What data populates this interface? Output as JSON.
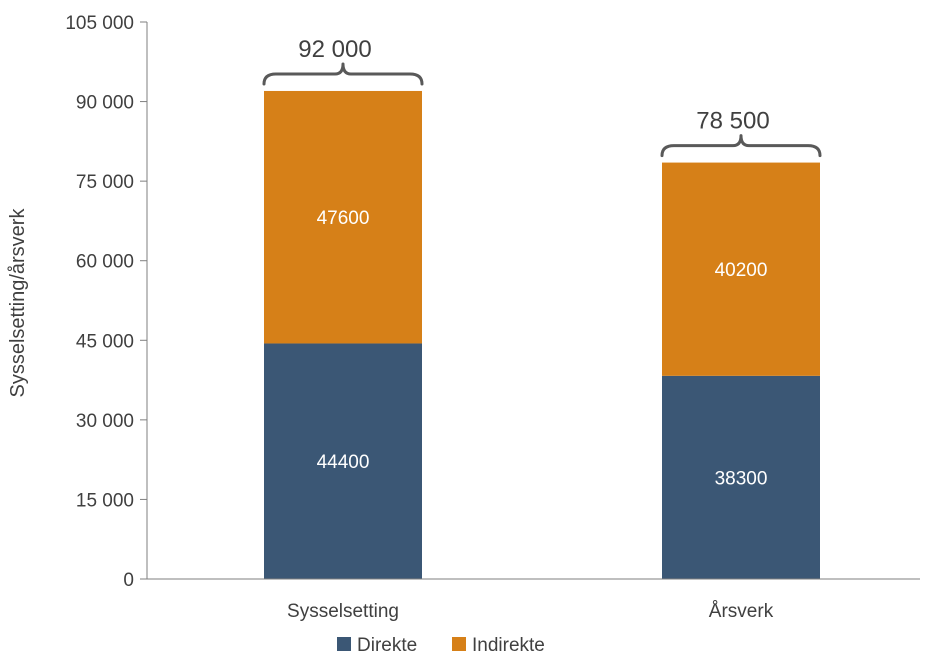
{
  "chart_data": {
    "type": "bar",
    "stacked": true,
    "title": "",
    "xlabel": "",
    "ylabel": "Sysselsetting/årsverk",
    "ylim": [
      0,
      105000
    ],
    "yticks": [
      {
        "value": 0,
        "label": "0"
      },
      {
        "value": 15000,
        "label": "15 000"
      },
      {
        "value": 30000,
        "label": "30 000"
      },
      {
        "value": 45000,
        "label": "45 000"
      },
      {
        "value": 60000,
        "label": "60 000"
      },
      {
        "value": 75000,
        "label": "75 000"
      },
      {
        "value": 90000,
        "label": "90 000"
      },
      {
        "value": 105000,
        "label": "105 000"
      }
    ],
    "categories": [
      "Sysselsetting",
      "Årsverk"
    ],
    "series": [
      {
        "name": "Direkte",
        "color": "#3b5775",
        "values": [
          44400,
          38300
        ],
        "labels": [
          "44400",
          "38300"
        ]
      },
      {
        "name": "Indirekte",
        "color": "#d68018",
        "values": [
          47600,
          40200
        ],
        "labels": [
          "47600",
          "40200"
        ]
      }
    ],
    "totals": [
      {
        "value": 92000,
        "label": "92 000"
      },
      {
        "value": 78500,
        "label": "78 500"
      }
    ],
    "grid": false,
    "legend_position": "bottom"
  }
}
